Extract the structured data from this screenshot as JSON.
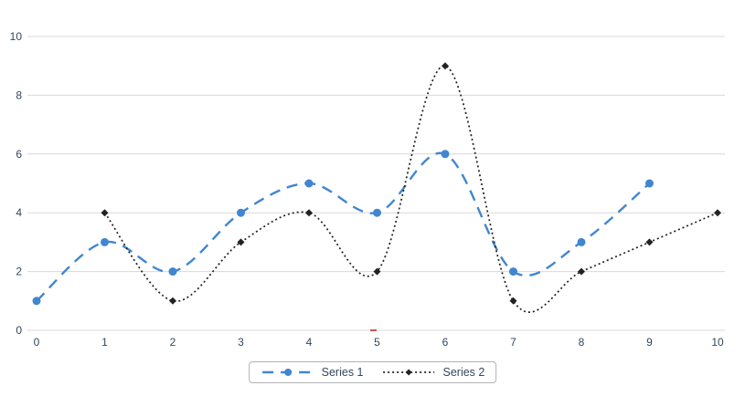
{
  "chart_data": {
    "type": "line",
    "title": "",
    "xlabel": "",
    "ylabel": "",
    "xlim": [
      0,
      10
    ],
    "ylim": [
      0,
      10
    ],
    "xticks": [
      0,
      1,
      2,
      3,
      4,
      5,
      6,
      7,
      8,
      9,
      10
    ],
    "yticks": [
      0,
      2,
      4,
      6,
      8,
      10
    ],
    "grid": "horizontal",
    "legend_position": "bottom-center",
    "smooth": true,
    "series": [
      {
        "name": "Series 1",
        "color": "#4186d0",
        "line_style": "dashed",
        "marker": "circle",
        "points": [
          [
            0,
            1
          ],
          [
            1,
            3
          ],
          [
            2,
            2
          ],
          [
            3,
            4
          ],
          [
            4,
            5
          ],
          [
            5,
            4
          ],
          [
            6,
            6
          ],
          [
            7,
            2
          ],
          [
            8,
            3
          ],
          [
            9,
            5
          ]
        ]
      },
      {
        "name": "Series 2",
        "color": "#222222",
        "line_style": "dotted",
        "marker": "diamond",
        "points": [
          [
            1,
            4
          ],
          [
            2,
            1
          ],
          [
            3,
            3
          ],
          [
            4,
            4
          ],
          [
            5,
            2
          ],
          [
            6,
            9
          ],
          [
            7,
            1
          ],
          [
            8,
            2
          ],
          [
            9,
            3
          ],
          [
            10,
            4
          ]
        ]
      }
    ],
    "colors": {
      "grid": "#d9d9d9",
      "tick_label": "#33475c",
      "legend_text": "#33475c",
      "legend_border": "#b3b3b3",
      "background": "#ffffff"
    }
  }
}
